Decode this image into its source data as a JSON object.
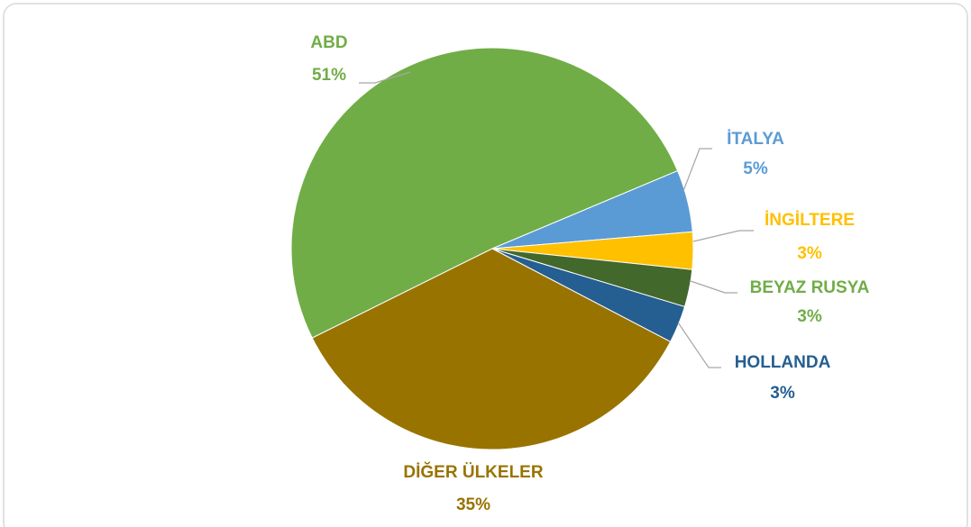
{
  "chart_data": {
    "type": "pie",
    "categories": [
      "ABD",
      "İTALYA",
      "İNGİLTERE",
      "BEYAZ RUSYA",
      "HOLLANDA",
      "DİĞER ÜLKELER"
    ],
    "values": [
      51,
      5,
      3,
      3,
      3,
      35
    ],
    "value_labels": [
      "51%",
      "5%",
      "3%",
      "3%",
      "3%",
      "35%"
    ],
    "colors": [
      "#70ad47",
      "#5b9bd5",
      "#ffc000",
      "#43682b",
      "#255e91",
      "#997300"
    ]
  }
}
